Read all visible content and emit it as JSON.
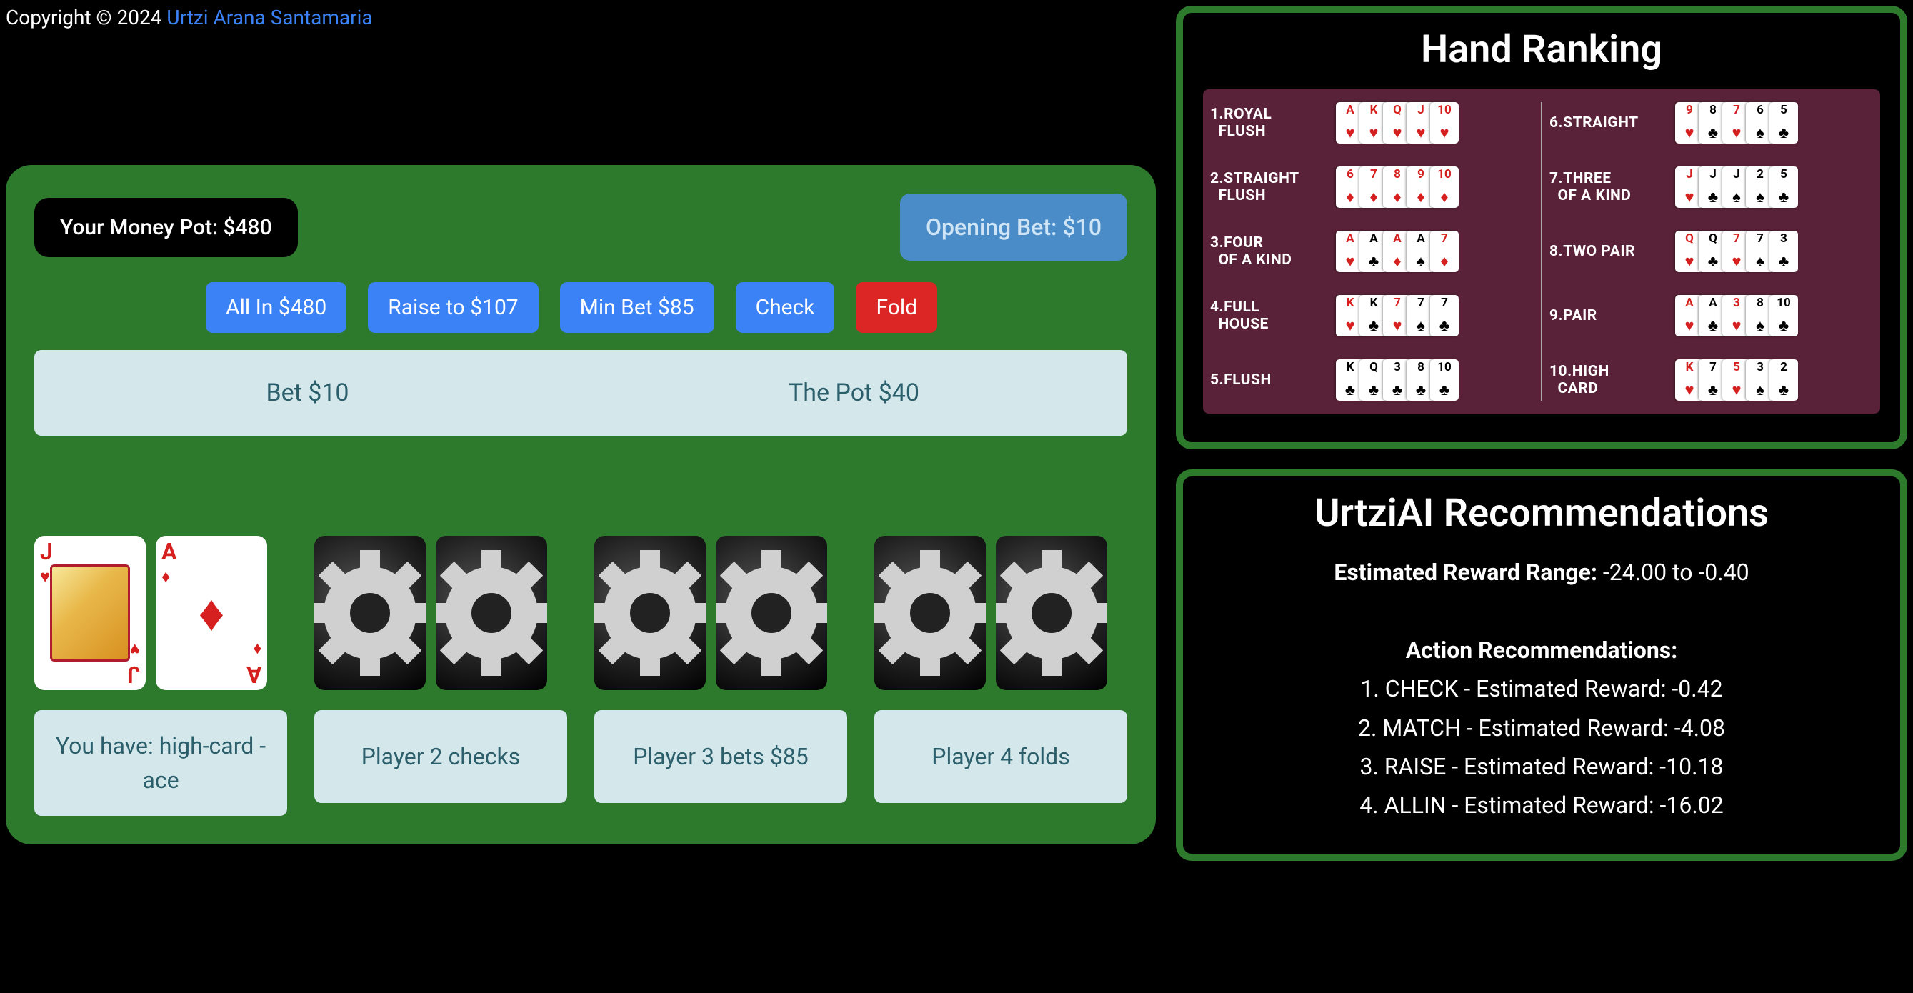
{
  "copyright": {
    "prefix": "Copyright © 2024 ",
    "author": "Urtzi Arana Santamaria"
  },
  "game": {
    "money_pot_label": "Your Money Pot: $480",
    "opening_bet_label": "Opening Bet: $10",
    "buttons": {
      "all_in": "All In $480",
      "raise": "Raise to $107",
      "min_bet": "Min Bet $85",
      "check": "Check",
      "fold": "Fold"
    },
    "bet_label": "Bet $10",
    "pot_label": "The Pot $40",
    "players": [
      {
        "cards": [
          {
            "rank": "J",
            "suit": "heart",
            "face_up": true,
            "is_face_card": true
          },
          {
            "rank": "A",
            "suit": "diamond",
            "face_up": true,
            "is_face_card": false
          }
        ],
        "status": "You have: high-card - ace"
      },
      {
        "cards": [
          {
            "face_up": false
          },
          {
            "face_up": false
          }
        ],
        "status": "Player 2 checks"
      },
      {
        "cards": [
          {
            "face_up": false
          },
          {
            "face_up": false
          }
        ],
        "status": "Player 3 bets $85"
      },
      {
        "cards": [
          {
            "face_up": false
          },
          {
            "face_up": false
          }
        ],
        "status": "Player 4 folds"
      }
    ]
  },
  "ranking": {
    "title": "Hand Ranking",
    "background_color": "#5a2238",
    "suit_colors": {
      "heart": "#d62020",
      "diamond": "#d62020",
      "club": "#000",
      "spade": "#000"
    },
    "hands": [
      {
        "num": "1.",
        "name": "ROYAL FLUSH",
        "cards": [
          [
            "A",
            "heart"
          ],
          [
            "K",
            "heart"
          ],
          [
            "Q",
            "heart"
          ],
          [
            "J",
            "heart"
          ],
          [
            "10",
            "heart"
          ]
        ]
      },
      {
        "num": "2.",
        "name": "STRAIGHT FLUSH",
        "cards": [
          [
            "6",
            "diamond"
          ],
          [
            "7",
            "diamond"
          ],
          [
            "8",
            "diamond"
          ],
          [
            "9",
            "diamond"
          ],
          [
            "10",
            "diamond"
          ]
        ]
      },
      {
        "num": "3.",
        "name": "FOUR OF A KIND",
        "cards": [
          [
            "A",
            "heart"
          ],
          [
            "A",
            "club"
          ],
          [
            "A",
            "diamond"
          ],
          [
            "A",
            "spade"
          ],
          [
            "7",
            "diamond"
          ]
        ]
      },
      {
        "num": "4.",
        "name": "FULL HOUSE",
        "cards": [
          [
            "K",
            "heart"
          ],
          [
            "K",
            "club"
          ],
          [
            "7",
            "heart"
          ],
          [
            "7",
            "spade"
          ],
          [
            "7",
            "club"
          ]
        ]
      },
      {
        "num": "5.",
        "name": "FLUSH",
        "cards": [
          [
            "K",
            "club"
          ],
          [
            "Q",
            "club"
          ],
          [
            "3",
            "club"
          ],
          [
            "8",
            "club"
          ],
          [
            "10",
            "club"
          ]
        ]
      },
      {
        "num": "6.",
        "name": "STRAIGHT",
        "cards": [
          [
            "9",
            "heart"
          ],
          [
            "8",
            "club"
          ],
          [
            "7",
            "heart"
          ],
          [
            "6",
            "spade"
          ],
          [
            "5",
            "club"
          ]
        ]
      },
      {
        "num": "7.",
        "name": "THREE OF A KIND",
        "cards": [
          [
            "J",
            "heart"
          ],
          [
            "J",
            "club"
          ],
          [
            "J",
            "spade"
          ],
          [
            "2",
            "spade"
          ],
          [
            "5",
            "club"
          ]
        ]
      },
      {
        "num": "8.",
        "name": "TWO PAIR",
        "cards": [
          [
            "Q",
            "heart"
          ],
          [
            "Q",
            "club"
          ],
          [
            "7",
            "heart"
          ],
          [
            "7",
            "spade"
          ],
          [
            "3",
            "club"
          ]
        ]
      },
      {
        "num": "9.",
        "name": "PAIR",
        "cards": [
          [
            "A",
            "heart"
          ],
          [
            "A",
            "club"
          ],
          [
            "3",
            "heart"
          ],
          [
            "8",
            "spade"
          ],
          [
            "10",
            "club"
          ]
        ]
      },
      {
        "num": "10.",
        "name": "HIGH CARD",
        "cards": [
          [
            "K",
            "heart"
          ],
          [
            "7",
            "club"
          ],
          [
            "5",
            "heart"
          ],
          [
            "3",
            "spade"
          ],
          [
            "2",
            "club"
          ]
        ]
      }
    ]
  },
  "recommendations": {
    "title": "UrtziAI Recommendations",
    "reward_range_label": "Estimated Reward Range:",
    "reward_range_value": " -24.00 to -0.40",
    "actions_label": "Action Recommendations:",
    "actions": [
      "1. CHECK - Estimated Reward: -0.42",
      "2. MATCH - Estimated Reward: -4.08",
      "3. RAISE - Estimated Reward: -10.18",
      "4. ALLIN - Estimated Reward: -16.02"
    ]
  }
}
